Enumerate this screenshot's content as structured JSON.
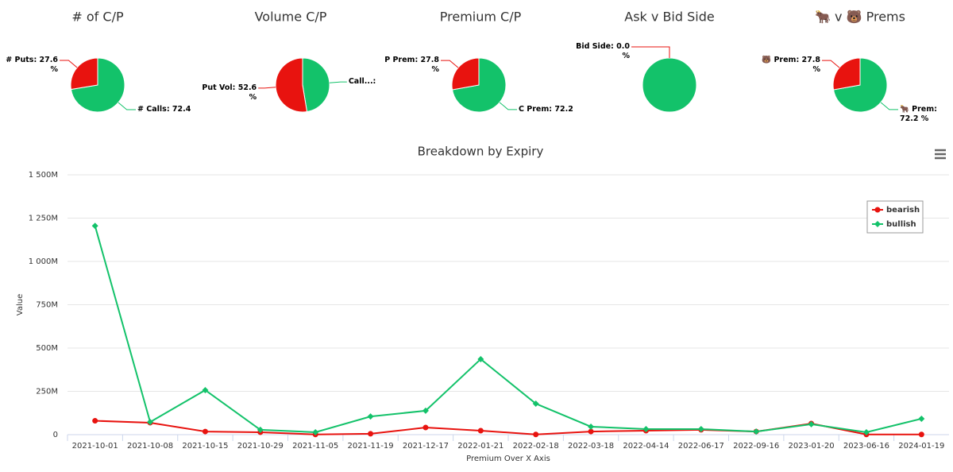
{
  "chart_data": [
    {
      "type": "pie",
      "title": "# of C/P",
      "values": [
        72.4,
        27.6
      ],
      "value_labels": [
        "# Calls: 72.4",
        "# Puts: 27.6 %"
      ],
      "colors": [
        "#13c26a",
        "#e8130f"
      ]
    },
    {
      "type": "pie",
      "title": "Volume C/P",
      "values": [
        47.4,
        52.6
      ],
      "value_labels": [
        "Call...:",
        "Put Vol: 52.6 %"
      ],
      "colors": [
        "#13c26a",
        "#e8130f"
      ]
    },
    {
      "type": "pie",
      "title": "Premium C/P",
      "values": [
        72.2,
        27.8
      ],
      "value_labels": [
        "C Prem: 72.2",
        "P Prem: 27.8 %"
      ],
      "colors": [
        "#13c26a",
        "#e8130f"
      ]
    },
    {
      "type": "pie",
      "title": "Ask v Bid Side",
      "values": [
        100,
        0
      ],
      "value_labels": [
        null,
        "Bid Side: 0.0 %"
      ],
      "colors": [
        "#13c26a",
        "#e8130f"
      ]
    },
    {
      "type": "pie",
      "title": "🐂 v 🐻 Prems",
      "values": [
        72.2,
        27.8
      ],
      "value_labels": [
        "🐂 Prem: 72.2 %",
        "🐻 Prem: 27.8 %"
      ],
      "colors": [
        "#13c26a",
        "#e8130f"
      ]
    },
    {
      "type": "line",
      "title": "Breakdown by Expiry",
      "y_label": "Value",
      "x_label": "Premium Over X Axis",
      "categories": [
        "2021-10-01",
        "2021-10-08",
        "2021-10-15",
        "2021-10-29",
        "2021-11-05",
        "2021-11-19",
        "2021-12-17",
        "2022-01-21",
        "2022-02-18",
        "2022-03-18",
        "2022-04-14",
        "2022-06-17",
        "2022-09-16",
        "2023-01-20",
        "2023-06-16",
        "2024-01-19"
      ],
      "series": [
        {
          "name": "bearish",
          "color": "#e8130f",
          "marker": "circle",
          "values": [
            80000000,
            69000000,
            18000000,
            14000000,
            1000000,
            5000000,
            41000000,
            23000000,
            1000000,
            18000000,
            23000000,
            28000000,
            18000000,
            64000000,
            1000000,
            1000000
          ]
        },
        {
          "name": "bullish",
          "color": "#13c26a",
          "marker": "diamond",
          "values": [
            1205000000,
            73000000,
            257000000,
            28000000,
            14000000,
            105000000,
            138000000,
            436000000,
            179000000,
            46000000,
            32000000,
            32000000,
            18000000,
            60000000,
            14000000,
            92000000
          ]
        }
      ],
      "ylim": [
        0,
        1500000000
      ],
      "yticks": [
        0,
        {
          "value": 250000000,
          "label": "250M"
        },
        {
          "value": 500000000,
          "label": "500M"
        },
        {
          "value": 750000000,
          "label": "750M"
        },
        {
          "value": 1000000000,
          "label": "1 000M"
        },
        {
          "value": 1250000000,
          "label": "1 250M"
        },
        {
          "value": 1500000000,
          "label": "1 500M"
        }
      ],
      "grid": true,
      "legend": "top-right"
    }
  ]
}
